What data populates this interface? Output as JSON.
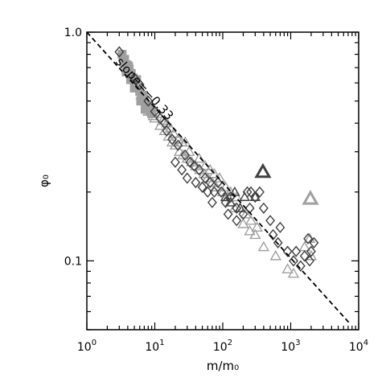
{
  "chart_data": {
    "type": "scatter",
    "title": "",
    "xscale": "log",
    "yscale": "log",
    "xlim": [
      1,
      10000
    ],
    "ylim": [
      0.05,
      1.0
    ],
    "xlabel": "m/m₀",
    "ylabel": "φ₀",
    "grid": false,
    "legend": "none",
    "x_ticks": [
      {
        "value": 1,
        "base": "10",
        "exp": "0"
      },
      {
        "value": 10,
        "base": "10",
        "exp": "1"
      },
      {
        "value": 100,
        "base": "10",
        "exp": "2"
      },
      {
        "value": 1000,
        "base": "10",
        "exp": "3"
      },
      {
        "value": 10000,
        "base": "10",
        "exp": "4"
      }
    ],
    "y_ticks": [
      {
        "value": 0.1,
        "label": "0.1"
      },
      {
        "value": 1.0,
        "label": "1.0"
      }
    ],
    "colors": {
      "dark_gray": "#404040",
      "light_gray": "#a0a0a0",
      "line": "#000000"
    },
    "fit_line": {
      "label": "slope=−0.33",
      "slope": -0.33,
      "x": [
        1,
        7500
      ],
      "y": [
        1.0,
        0.053
      ]
    },
    "series": [
      {
        "marker": "square",
        "color": "light_gray",
        "filled": true,
        "points": [
          [
            3.3,
            0.8
          ],
          [
            3.6,
            0.76
          ],
          [
            3.9,
            0.72
          ],
          [
            4.2,
            0.69
          ],
          [
            4.5,
            0.66
          ],
          [
            4.8,
            0.63
          ],
          [
            5.2,
            0.6
          ],
          [
            5.6,
            0.57
          ],
          [
            6.0,
            0.55
          ],
          [
            6.5,
            0.53
          ],
          [
            7.0,
            0.5
          ],
          [
            7.5,
            0.48
          ],
          [
            8.0,
            0.47
          ],
          [
            8.5,
            0.45
          ],
          [
            9.0,
            0.44
          ],
          [
            3.8,
            0.67
          ],
          [
            4.4,
            0.62
          ],
          [
            5.0,
            0.57
          ],
          [
            6.2,
            0.5
          ],
          [
            7.2,
            0.46
          ],
          [
            3.5,
            0.74
          ],
          [
            4.1,
            0.71
          ],
          [
            5.4,
            0.62
          ],
          [
            6.8,
            0.53
          ],
          [
            8.8,
            0.46
          ]
        ]
      },
      {
        "marker": "triangle",
        "color": "light_gray",
        "filled": false,
        "points": [
          [
            10,
            0.42
          ],
          [
            12,
            0.39
          ],
          [
            14,
            0.37
          ],
          [
            16,
            0.35
          ],
          [
            18,
            0.33
          ],
          [
            20,
            0.32
          ],
          [
            23,
            0.3
          ],
          [
            26,
            0.29
          ],
          [
            30,
            0.28
          ],
          [
            35,
            0.27
          ],
          [
            40,
            0.26
          ],
          [
            46,
            0.25
          ],
          [
            53,
            0.24
          ],
          [
            60,
            0.23
          ],
          [
            70,
            0.22
          ],
          [
            80,
            0.21
          ],
          [
            100,
            0.2
          ],
          [
            120,
            0.19
          ],
          [
            150,
            0.17
          ],
          [
            200,
            0.145
          ],
          [
            250,
            0.135
          ],
          [
            300,
            0.13
          ],
          [
            400,
            0.115
          ],
          [
            600,
            0.105
          ],
          [
            900,
            0.092
          ],
          [
            1100,
            0.088
          ],
          [
            1600,
            0.115
          ],
          [
            1900,
            0.125
          ],
          [
            2000,
            0.105
          ],
          [
            11,
            0.44
          ],
          [
            13,
            0.41
          ],
          [
            15,
            0.4
          ],
          [
            17,
            0.38
          ],
          [
            19,
            0.36
          ],
          [
            22,
            0.34
          ],
          [
            25,
            0.33
          ],
          [
            28,
            0.33
          ],
          [
            32,
            0.3
          ],
          [
            45,
            0.28
          ],
          [
            55,
            0.26
          ],
          [
            65,
            0.25
          ],
          [
            75,
            0.24
          ],
          [
            90,
            0.23
          ],
          [
            110,
            0.21
          ],
          [
            130,
            0.2
          ],
          [
            160,
            0.19
          ],
          [
            180,
            0.17
          ],
          [
            220,
            0.16
          ],
          [
            260,
            0.15
          ],
          [
            320,
            0.14
          ],
          [
            8,
            0.45
          ],
          [
            9.5,
            0.43
          ],
          [
            7.2,
            0.5
          ],
          [
            6.3,
            0.53
          ],
          [
            5.5,
            0.58
          ]
        ]
      },
      {
        "marker": "diamond",
        "color": "dark_gray",
        "filled": false,
        "points": [
          [
            3,
            0.82
          ],
          [
            5,
            0.63
          ],
          [
            8,
            0.5
          ],
          [
            12,
            0.42
          ],
          [
            15,
            0.37
          ],
          [
            18,
            0.34
          ],
          [
            22,
            0.32
          ],
          [
            28,
            0.29
          ],
          [
            33,
            0.27
          ],
          [
            38,
            0.26
          ],
          [
            45,
            0.25
          ],
          [
            55,
            0.23
          ],
          [
            65,
            0.22
          ],
          [
            75,
            0.2
          ],
          [
            85,
            0.22
          ],
          [
            95,
            0.2
          ],
          [
            110,
            0.18
          ],
          [
            130,
            0.19
          ],
          [
            160,
            0.17
          ],
          [
            200,
            0.16
          ],
          [
            230,
            0.2
          ],
          [
            260,
            0.2
          ],
          [
            300,
            0.19
          ],
          [
            350,
            0.2
          ],
          [
            400,
            0.17
          ],
          [
            500,
            0.15
          ],
          [
            550,
            0.13
          ],
          [
            650,
            0.12
          ],
          [
            700,
            0.14
          ],
          [
            900,
            0.11
          ],
          [
            1100,
            0.1
          ],
          [
            1200,
            0.11
          ],
          [
            1400,
            0.095
          ],
          [
            1600,
            0.105
          ],
          [
            1900,
            0.1
          ],
          [
            2000,
            0.11
          ],
          [
            2200,
            0.12
          ],
          [
            1800,
            0.125
          ],
          [
            250,
            0.17
          ],
          [
            160,
            0.15
          ],
          [
            120,
            0.16
          ],
          [
            70,
            0.18
          ],
          [
            60,
            0.2
          ],
          [
            40,
            0.22
          ],
          [
            30,
            0.23
          ],
          [
            50,
            0.21
          ],
          [
            25,
            0.25
          ],
          [
            20,
            0.27
          ],
          [
            6,
            0.59
          ],
          [
            10,
            0.45
          ],
          [
            14,
            0.4
          ]
        ]
      },
      {
        "marker": "triangle",
        "color": "dark_gray",
        "filled": false,
        "size": "small",
        "points": [
          [
            110,
            0.19
          ],
          [
            130,
            0.18
          ],
          [
            150,
            0.2
          ],
          [
            180,
            0.17
          ],
          [
            210,
            0.19
          ],
          [
            300,
            0.19
          ]
        ]
      },
      {
        "marker": "triangle",
        "color": "dark_gray",
        "filled": false,
        "size": "large",
        "points": [
          [
            390,
            0.245
          ]
        ]
      },
      {
        "marker": "triangle",
        "color": "light_gray",
        "filled": false,
        "size": "large",
        "points": [
          [
            1950,
            0.187
          ]
        ]
      }
    ]
  }
}
